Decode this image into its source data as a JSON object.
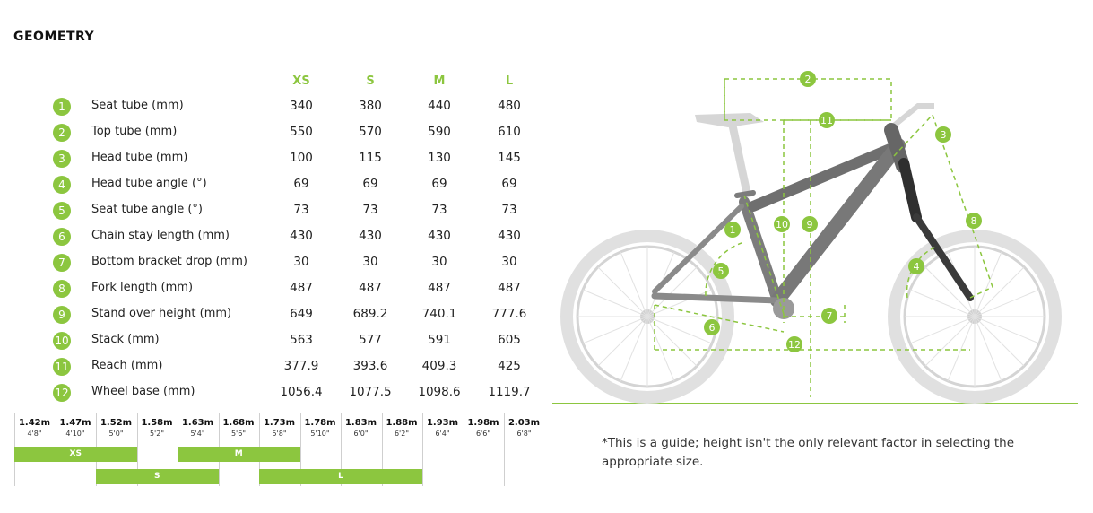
{
  "title": "GEOMETRY",
  "sizes": [
    "XS",
    "S",
    "M",
    "L"
  ],
  "rows": [
    {
      "num": "1",
      "label": "Seat tube (mm)",
      "values": [
        "340",
        "380",
        "440",
        "480"
      ]
    },
    {
      "num": "2",
      "label": "Top tube (mm)",
      "values": [
        "550",
        "570",
        "590",
        "610"
      ]
    },
    {
      "num": "3",
      "label": "Head tube (mm)",
      "values": [
        "100",
        "115",
        "130",
        "145"
      ]
    },
    {
      "num": "4",
      "label": "Head tube angle (°)",
      "values": [
        "69",
        "69",
        "69",
        "69"
      ]
    },
    {
      "num": "5",
      "label": "Seat tube angle (°)",
      "values": [
        "73",
        "73",
        "73",
        "73"
      ]
    },
    {
      "num": "6",
      "label": "Chain stay length (mm)",
      "values": [
        "430",
        "430",
        "430",
        "430"
      ]
    },
    {
      "num": "7",
      "label": "Bottom bracket drop (mm)",
      "values": [
        "30",
        "30",
        "30",
        "30"
      ]
    },
    {
      "num": "8",
      "label": "Fork length (mm)",
      "values": [
        "487",
        "487",
        "487",
        "487"
      ]
    },
    {
      "num": "9",
      "label": "Stand over height (mm)",
      "values": [
        "649",
        "689.2",
        "740.1",
        "777.6"
      ]
    },
    {
      "num": "10",
      "label": "Stack (mm)",
      "values": [
        "563",
        "577",
        "591",
        "605"
      ]
    },
    {
      "num": "11",
      "label": "Reach (mm)",
      "values": [
        "377.9",
        "393.6",
        "409.3",
        "425"
      ]
    },
    {
      "num": "12",
      "label": "Wheel base (mm)",
      "values": [
        "1056.4",
        "1077.5",
        "1098.6",
        "1119.7"
      ]
    }
  ],
  "heights": [
    {
      "m": "1.42m",
      "ft": "4'8\""
    },
    {
      "m": "1.47m",
      "ft": "4'10\""
    },
    {
      "m": "1.52m",
      "ft": "5'0\""
    },
    {
      "m": "1.58m",
      "ft": "5'2\""
    },
    {
      "m": "1.63m",
      "ft": "5'4\""
    },
    {
      "m": "1.68m",
      "ft": "5'6\""
    },
    {
      "m": "1.73m",
      "ft": "5'8\""
    },
    {
      "m": "1.78m",
      "ft": "5'10\""
    },
    {
      "m": "1.83m",
      "ft": "6'0\""
    },
    {
      "m": "1.88m",
      "ft": "6'2\""
    },
    {
      "m": "1.93m",
      "ft": "6'4\""
    },
    {
      "m": "1.98m",
      "ft": "6'6\""
    },
    {
      "m": "2.03m",
      "ft": "6'8\""
    }
  ],
  "size_ranges": [
    {
      "label": "XS",
      "from": "1.42m",
      "to": "1.58m"
    },
    {
      "label": "S",
      "from": "1.52m",
      "to": "1.68m"
    },
    {
      "label": "M",
      "from": "1.63m",
      "to": "1.78m"
    },
    {
      "label": "L",
      "from": "1.73m",
      "to": "1.93m"
    }
  ],
  "diagram_markers": [
    "1",
    "2",
    "3",
    "4",
    "5",
    "6",
    "7",
    "8",
    "9",
    "10",
    "11",
    "12"
  ],
  "note": "*This is a guide; height isn't the only relevant factor in selecting the appropriate size.",
  "colors": {
    "accent": "#8cc63f",
    "bike": "#d8d8d8",
    "frame": "#6f6f6f"
  }
}
